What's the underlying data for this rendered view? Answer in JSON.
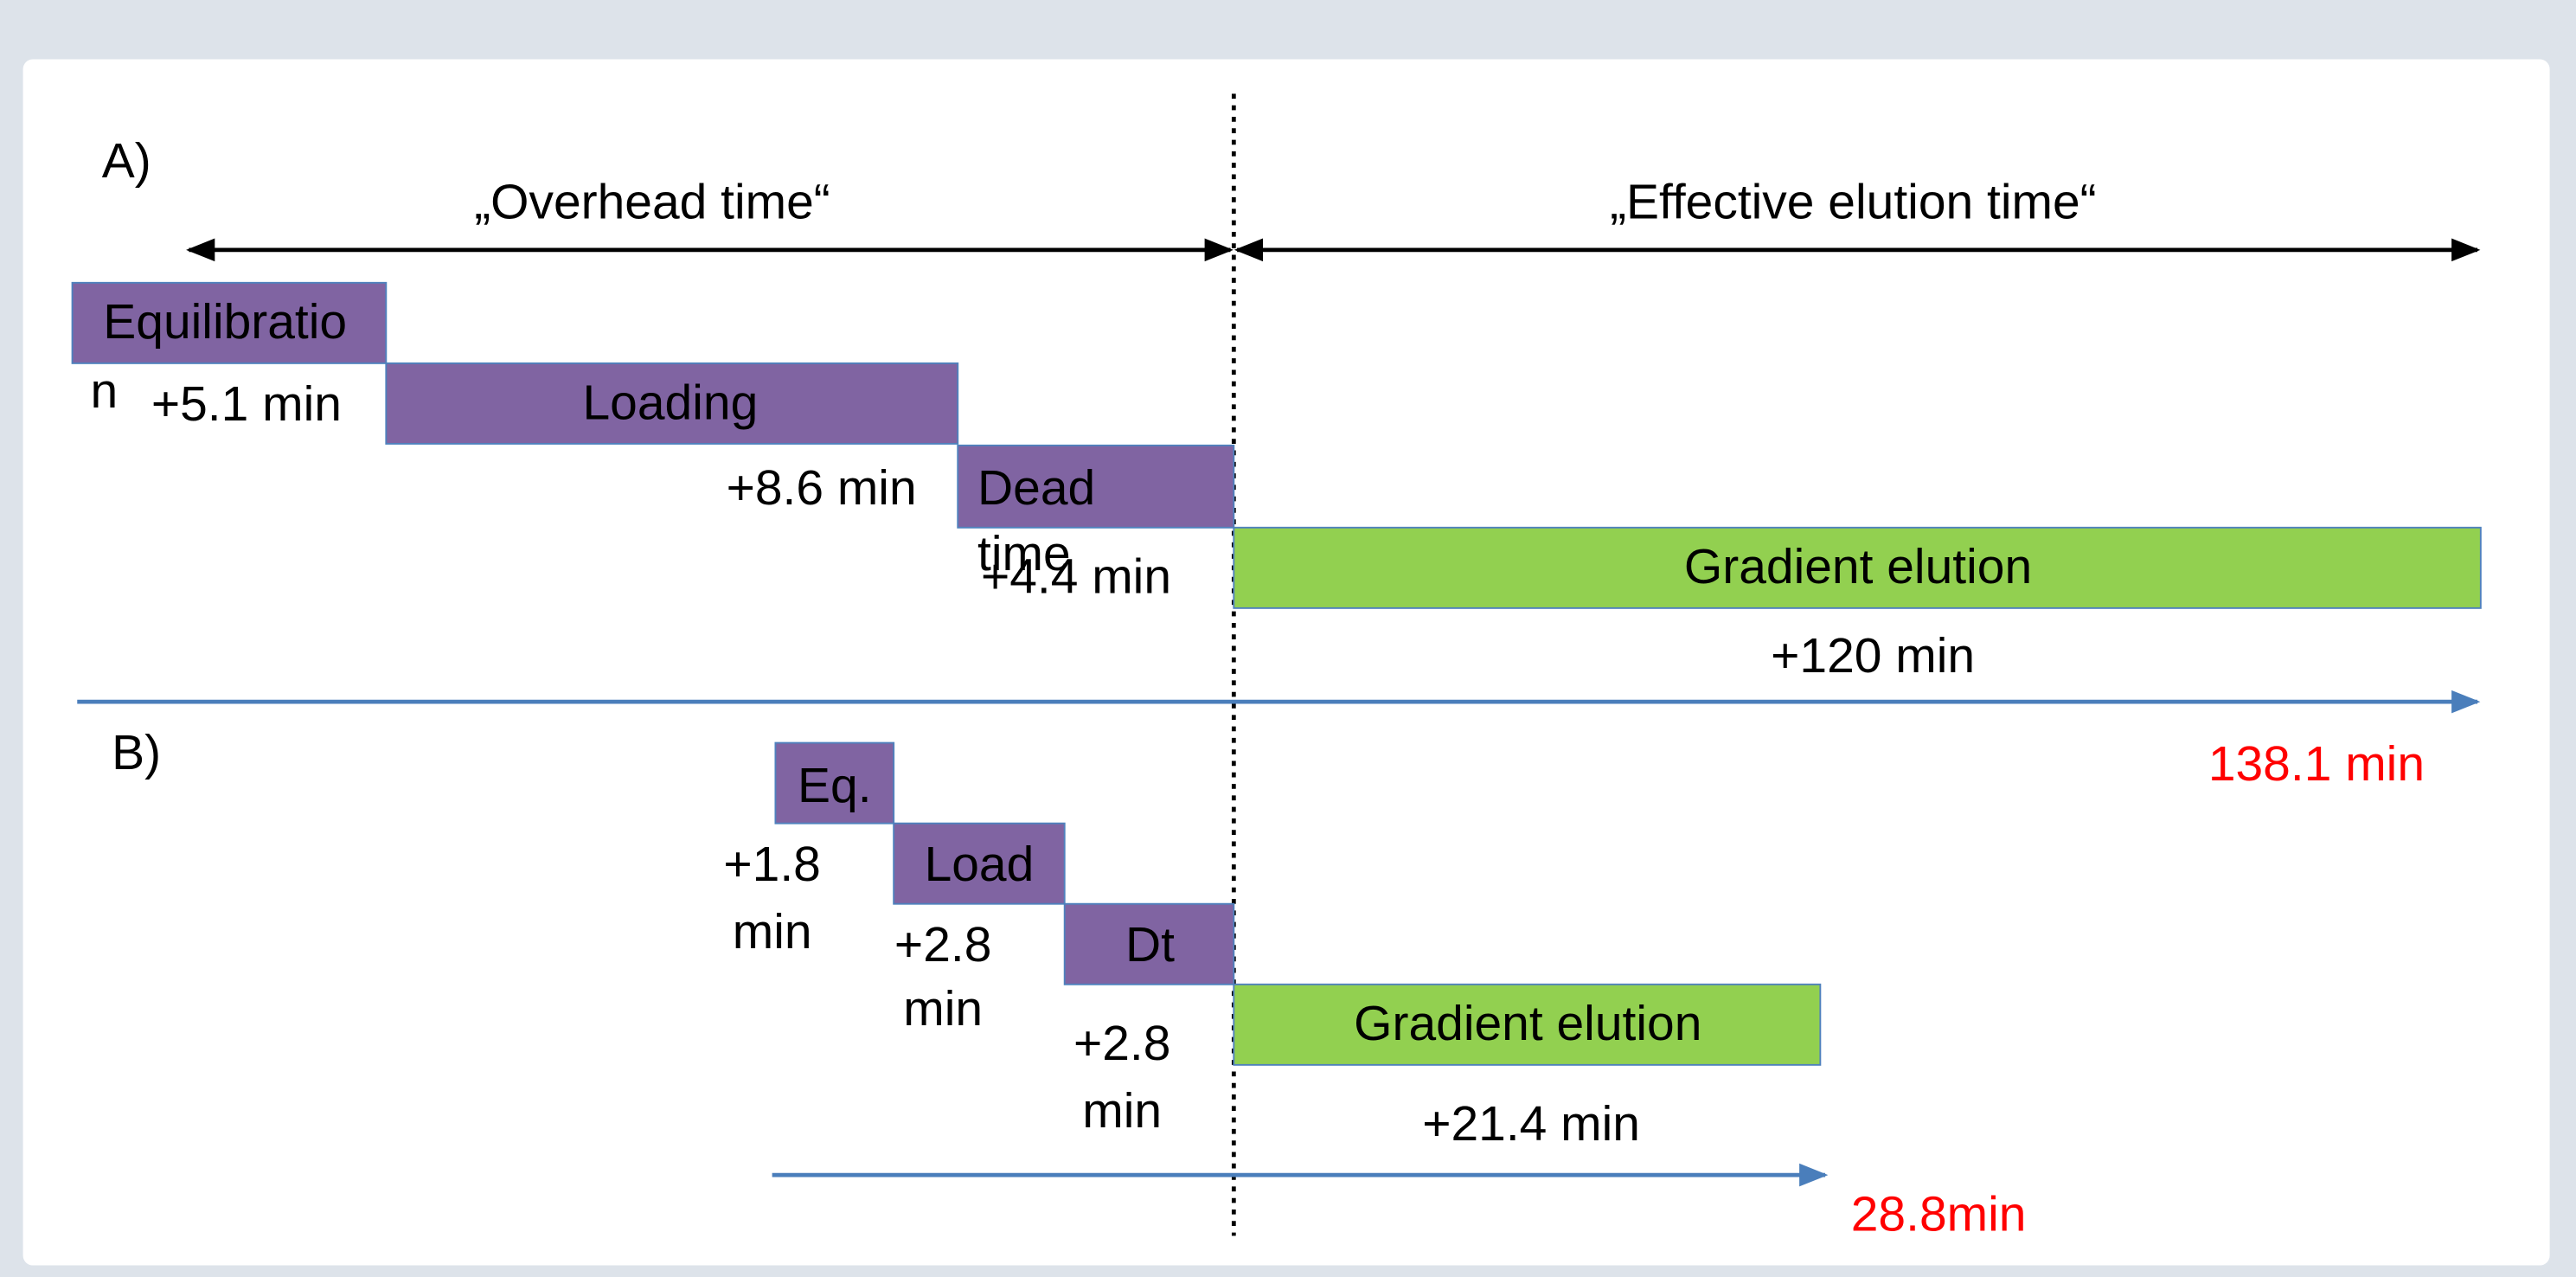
{
  "panel_a": {
    "label": "A)",
    "overhead_label": "„Overhead time“",
    "effective_label": "„Effective elution time“",
    "blocks": [
      {
        "name": [
          "Equilibratio",
          "n"
        ],
        "duration": "+5.1 min"
      },
      {
        "name": [
          "Loading"
        ],
        "duration": "+8.6 min"
      },
      {
        "name": [
          "Dead",
          "time"
        ],
        "duration": "+4.4 min"
      },
      {
        "name": [
          "Gradient elution"
        ],
        "duration": "+120 min"
      }
    ],
    "total": "138.1 min"
  },
  "panel_b": {
    "label": "B)",
    "blocks": [
      {
        "name": [
          "Eq."
        ],
        "duration": [
          "+1.8",
          "min"
        ]
      },
      {
        "name": [
          "Load"
        ],
        "duration": [
          "+2.8",
          "min"
        ]
      },
      {
        "name": [
          "Dt"
        ],
        "duration": [
          "+2.8",
          "min"
        ]
      },
      {
        "name": [
          "Gradient elution"
        ],
        "duration": [
          "+21.4 min"
        ]
      }
    ],
    "total": "28.8min"
  }
}
